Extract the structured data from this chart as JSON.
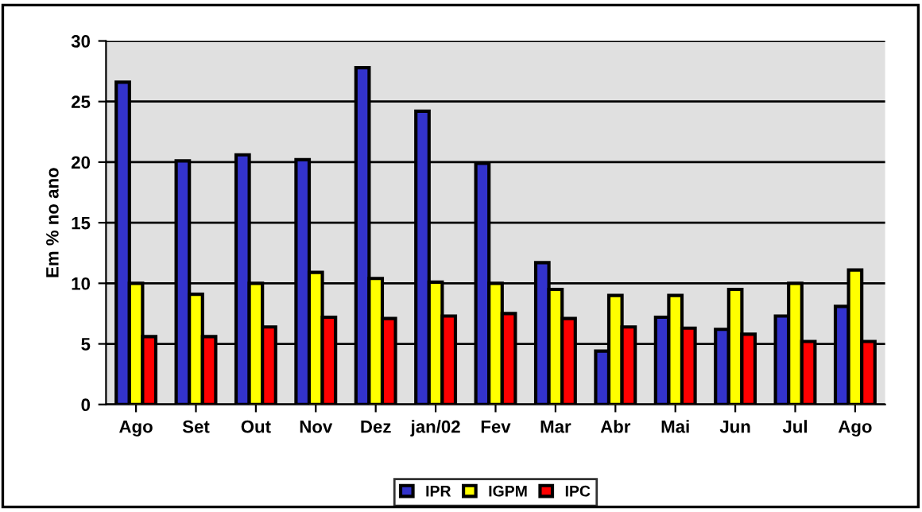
{
  "chart_data": {
    "type": "bar",
    "ylabel": "Em % no ano",
    "categories": [
      "Ago",
      "Set",
      "Out",
      "Nov",
      "Dez",
      "jan/02",
      "Fev",
      "Mar",
      "Abr",
      "Mai",
      "Jun",
      "Jul",
      "Ago"
    ],
    "series": [
      {
        "name": "IPR",
        "color": "#3333cc",
        "values": [
          26.6,
          20.1,
          20.6,
          20.2,
          27.8,
          24.2,
          19.9,
          11.7,
          4.4,
          7.2,
          6.2,
          7.3,
          8.1
        ]
      },
      {
        "name": "IGPM",
        "color": "#ffff00",
        "values": [
          10.0,
          9.1,
          10.0,
          10.9,
          10.4,
          10.1,
          10.0,
          9.5,
          9.0,
          9.0,
          9.5,
          10.0,
          11.1
        ]
      },
      {
        "name": "IPC",
        "color": "#ff0000",
        "values": [
          5.6,
          5.6,
          6.4,
          7.2,
          7.1,
          7.3,
          7.5,
          7.1,
          6.4,
          6.3,
          5.8,
          5.2,
          5.2
        ]
      }
    ],
    "ylim": [
      0,
      30
    ],
    "yticks": [
      0,
      5,
      10,
      15,
      20,
      25,
      30
    ],
    "grid": "y",
    "legend": "bottom"
  }
}
